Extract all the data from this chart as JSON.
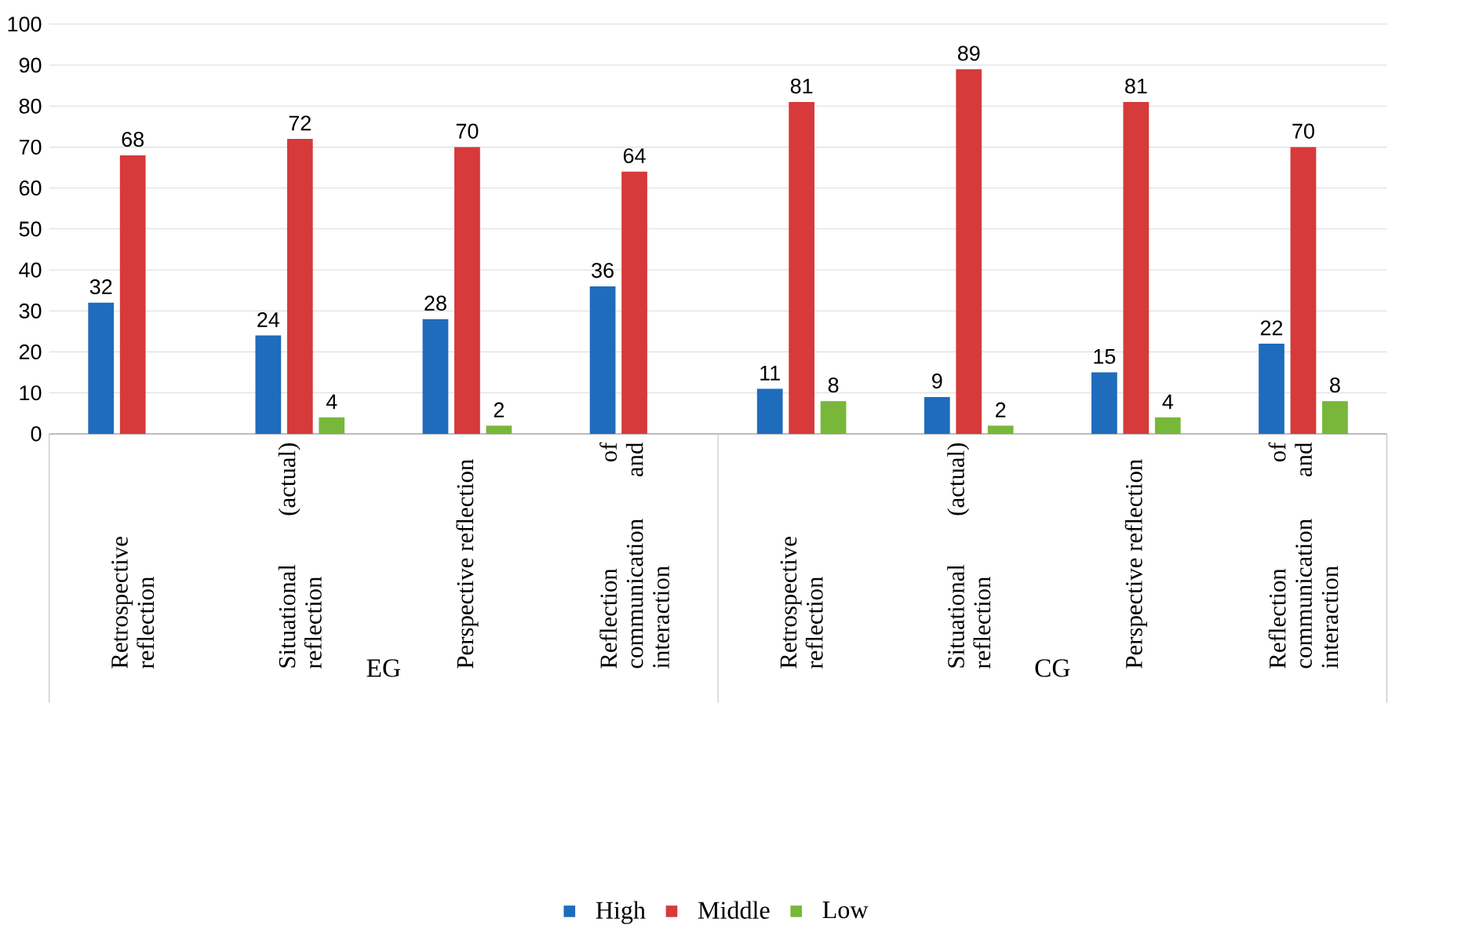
{
  "chart_data": {
    "type": "bar",
    "categories": [
      "Retrospective reflection",
      "Situational (actual) reflection",
      "Perspective reflection",
      "Reflection of communication and interaction",
      "Retrospective reflection",
      "Situational (actual) reflection",
      "Perspective reflection",
      "Reflection of communication and interaction"
    ],
    "series": [
      {
        "name": "High",
        "color": "#1f6cbc",
        "values": [
          32,
          24,
          28,
          36,
          11,
          9,
          15,
          22
        ]
      },
      {
        "name": "Middle",
        "color": "#d63a3a",
        "values": [
          68,
          72,
          70,
          64,
          81,
          89,
          81,
          70
        ]
      },
      {
        "name": "Low",
        "color": "#78b73a",
        "values": [
          null,
          4,
          2,
          null,
          8,
          2,
          4,
          8
        ]
      }
    ],
    "annotations": [
      "EG",
      "CG"
    ],
    "ylim": [
      0,
      100
    ],
    "yticks": [
      0,
      10,
      20,
      30,
      40,
      50,
      60,
      70,
      80,
      90,
      100
    ],
    "grid": "y",
    "legend": "bottom",
    "data_labels": true
  }
}
